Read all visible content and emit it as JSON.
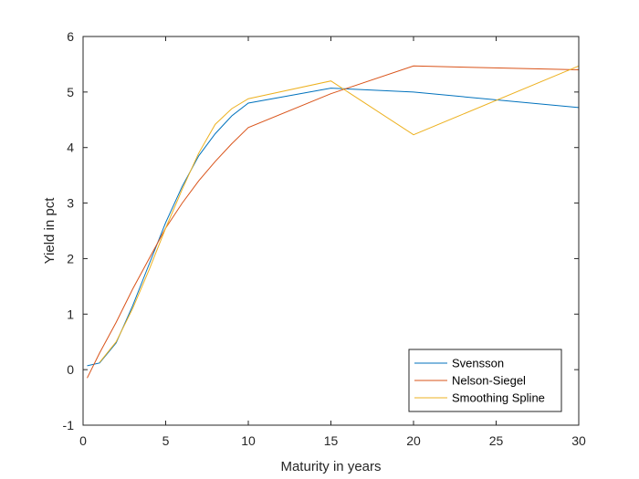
{
  "chart_data": {
    "type": "line",
    "title": "",
    "xlabel": "Maturity in years",
    "ylabel": "Yield in pct",
    "xlim": [
      0,
      30
    ],
    "ylim": [
      -1,
      6
    ],
    "xticks": [
      0,
      5,
      10,
      15,
      20,
      25,
      30
    ],
    "yticks": [
      -1,
      0,
      1,
      2,
      3,
      4,
      5,
      6
    ],
    "grid": false,
    "legend_position": "bottom-right",
    "series": [
      {
        "name": "Svensson",
        "color": "#0072BD",
        "x": [
          0.25,
          1,
          2,
          3,
          4,
          5,
          6,
          7,
          8,
          9,
          10,
          15,
          20,
          30
        ],
        "y": [
          0.07,
          0.12,
          0.48,
          1.15,
          1.9,
          2.65,
          3.3,
          3.85,
          4.25,
          4.57,
          4.8,
          5.07,
          5.0,
          4.72
        ]
      },
      {
        "name": "Nelson-Siegel",
        "color": "#D95319",
        "x": [
          0.25,
          1,
          2,
          3,
          4,
          5,
          6,
          7,
          8,
          9,
          10,
          15,
          20,
          30
        ],
        "y": [
          -0.15,
          0.3,
          0.85,
          1.45,
          2.0,
          2.55,
          3.0,
          3.4,
          3.75,
          4.07,
          4.36,
          4.97,
          5.47,
          5.4
        ]
      },
      {
        "name": "Smoothing Spline",
        "color": "#EDB120",
        "x": [
          1,
          2,
          3,
          4,
          5,
          6,
          7,
          8,
          9,
          10,
          15,
          20,
          30
        ],
        "y": [
          0.13,
          0.5,
          1.1,
          1.8,
          2.55,
          3.25,
          3.9,
          4.42,
          4.7,
          4.88,
          5.2,
          4.23,
          5.47
        ]
      }
    ]
  }
}
